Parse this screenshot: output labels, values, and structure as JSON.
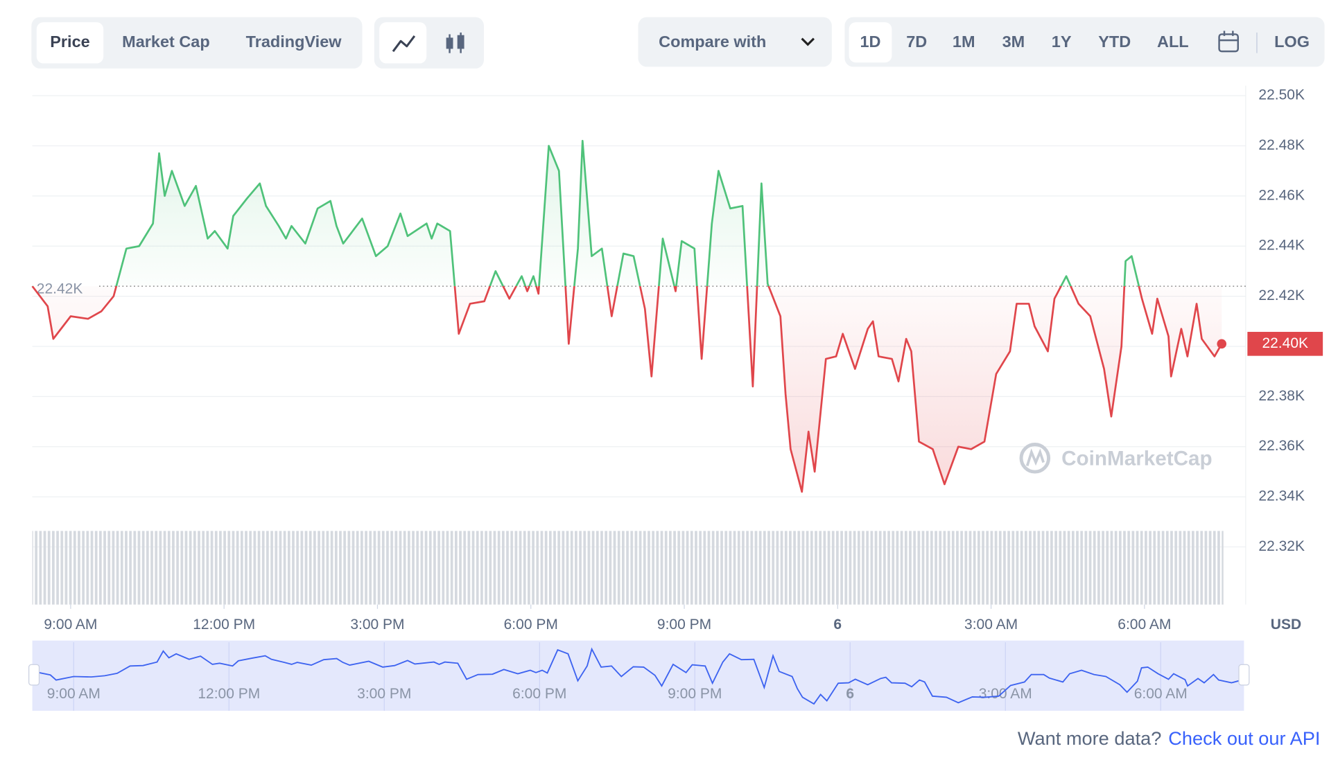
{
  "tabs": [
    "Price",
    "Market Cap",
    "TradingView"
  ],
  "compare": "Compare with",
  "ranges": [
    "1D",
    "7D",
    "1M",
    "3M",
    "1Y",
    "YTD",
    "ALL"
  ],
  "log": "LOG",
  "watermark": "CoinMarketCap",
  "footer": {
    "question": "Want more data?",
    "link": "Check out our API"
  },
  "chart_data": {
    "type": "line",
    "x": [
      8.25,
      8.55,
      8.66,
      9.0,
      9.34,
      9.6,
      9.84,
      10.09,
      10.34,
      10.61,
      10.73,
      10.84,
      10.98,
      11.23,
      11.45,
      11.68,
      11.82,
      12.07,
      12.18,
      12.45,
      12.7,
      12.82,
      13.07,
      13.21,
      13.32,
      13.59,
      13.83,
      14.08,
      14.2,
      14.33,
      14.7,
      14.97,
      15.2,
      15.45,
      15.59,
      15.96,
      16.06,
      16.17,
      16.42,
      16.59,
      16.81,
      17.09,
      17.31,
      17.58,
      17.82,
      17.93,
      18.05,
      18.15,
      18.35,
      18.55,
      18.74,
      18.92,
      19.01,
      19.19,
      19.39,
      19.58,
      19.81,
      20.01,
      20.23,
      20.36,
      20.58,
      20.83,
      20.95,
      21.2,
      21.34,
      21.54,
      21.67,
      21.9,
      22.14,
      22.34,
      22.51,
      22.63,
      22.88,
      22.98,
      23.08,
      23.3,
      23.43,
      23.55,
      23.77,
      23.97,
      24.1,
      24.34,
      24.59,
      24.69,
      24.8,
      25.06,
      25.19,
      25.34,
      25.44,
      25.59,
      25.86,
      26.09,
      26.36,
      26.61,
      26.87,
      27.1,
      27.37,
      27.5,
      27.74,
      27.85,
      28.11,
      28.24,
      28.47,
      28.71,
      28.94,
      29.21,
      29.35,
      29.55,
      29.63,
      29.75,
      29.95,
      30.15,
      30.25,
      30.47,
      30.52,
      30.72,
      30.84,
      31.02,
      31.12,
      31.37,
      31.51
    ],
    "values": [
      22424,
      22416,
      22403,
      22412,
      22411,
      22414,
      22420,
      22439,
      22440,
      22449,
      22477,
      22460,
      22470,
      22456,
      22464,
      22443,
      22446,
      22439,
      22452,
      22459,
      22465,
      22456,
      22448,
      22443,
      22448,
      22441,
      22455,
      22458,
      22448,
      22441,
      22451,
      22436,
      22440,
      22453,
      22444,
      22449,
      22443,
      22449,
      22446,
      22405,
      22417,
      22418,
      22430,
      22419,
      22428,
      22422,
      22428,
      22421,
      22480,
      22470,
      22401,
      22439,
      22482,
      22436,
      22439,
      22412,
      22437,
      22436,
      22415,
      22388,
      22443,
      22422,
      22442,
      22439,
      22395,
      22449,
      22470,
      22455,
      22456,
      22384,
      22465,
      22425,
      22412,
      22381,
      22359,
      22342,
      22366,
      22350,
      22395,
      22396,
      22405,
      22391,
      22407,
      22410,
      22396,
      22395,
      22386,
      22403,
      22398,
      22362,
      22359,
      22345,
      22360,
      22359,
      22362,
      22389,
      22398,
      22417,
      22417,
      22408,
      22398,
      22419,
      22428,
      22417,
      22412,
      22391,
      22372,
      22400,
      22434,
      22436,
      22419,
      22405,
      22419,
      22404,
      22388,
      22407,
      22396,
      22417,
      22403,
      22396,
      22401
    ],
    "xlim": [
      8.25,
      31.98
    ],
    "ylim": [
      22297,
      22504
    ],
    "xticks": [
      {
        "value": 9,
        "label": "9:00 AM"
      },
      {
        "value": 12,
        "label": "12:00 PM"
      },
      {
        "value": 15,
        "label": "3:00 PM"
      },
      {
        "value": 18,
        "label": "6:00 PM"
      },
      {
        "value": 21,
        "label": "9:00 PM"
      },
      {
        "value": 24,
        "label": "6"
      },
      {
        "value": 27,
        "label": "3:00 AM"
      },
      {
        "value": 30,
        "label": "6:00 AM"
      }
    ],
    "yticks": [
      {
        "value": 22500,
        "label": "22.50K"
      },
      {
        "value": 22480,
        "label": "22.48K"
      },
      {
        "value": 22460,
        "label": "22.46K"
      },
      {
        "value": 22440,
        "label": "22.44K"
      },
      {
        "value": 22420,
        "label": "22.42K"
      },
      {
        "value": 22400,
        "label": "22.40K"
      },
      {
        "value": 22380,
        "label": "22.38K"
      },
      {
        "value": 22360,
        "label": "22.36K"
      },
      {
        "value": 22340,
        "label": "22.34K"
      },
      {
        "value": 22320,
        "label": "22.32K"
      }
    ],
    "baseline": {
      "value": 22424,
      "label": "22.42K"
    },
    "last_price": {
      "value": 22401,
      "label": "22.40K"
    },
    "unit": "USD",
    "up_color": "#4fc27a",
    "down_color": "#e0464b",
    "navigator_color": "#3d63f0",
    "grid": true
  }
}
